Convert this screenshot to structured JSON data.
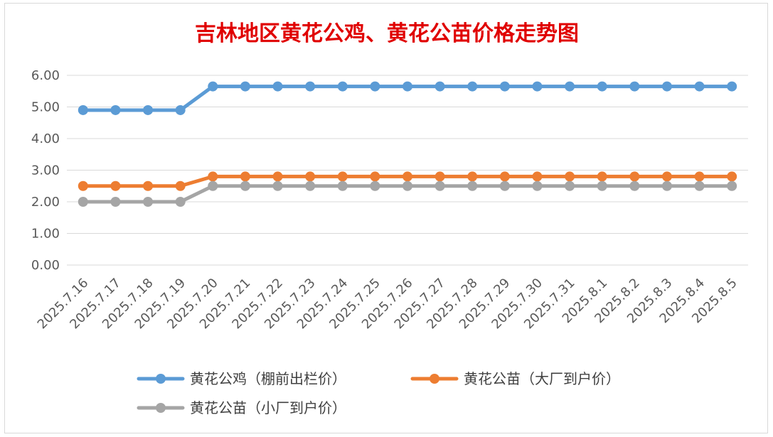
{
  "chart_data": {
    "type": "line",
    "title": "吉林地区黄花公鸡、黄花公苗价格走势图",
    "title_color": "#e00000",
    "xlabel": "",
    "ylabel": "",
    "ylim": [
      0,
      6
    ],
    "y_ticks": [
      "0.00",
      "1.00",
      "2.00",
      "3.00",
      "4.00",
      "5.00",
      "6.00"
    ],
    "grid": true,
    "legend_position": "bottom",
    "categories": [
      "2025.7.16",
      "2025.7.17",
      "2025.7.18",
      "2025.7.19",
      "2025.7.20",
      "2025.7.21",
      "2025.7.22",
      "2025.7.23",
      "2025.7.24",
      "2025.7.25",
      "2025.7.26",
      "2025.7.27",
      "2025.7.28",
      "2025.7.29",
      "2025.7.30",
      "2025.7.31",
      "2025.8.1",
      "2025.8.2",
      "2025.8.3",
      "2025.8.4",
      "2025.8.5"
    ],
    "series": [
      {
        "name": "黄花公鸡（棚前出栏价）",
        "color": "#5b9bd5",
        "values": [
          4.9,
          4.9,
          4.9,
          4.9,
          5.65,
          5.65,
          5.65,
          5.65,
          5.65,
          5.65,
          5.65,
          5.65,
          5.65,
          5.65,
          5.65,
          5.65,
          5.65,
          5.65,
          5.65,
          5.65,
          5.65
        ]
      },
      {
        "name": "黄花公苗（大厂到户价）",
        "color": "#ed7d31",
        "values": [
          2.5,
          2.5,
          2.5,
          2.5,
          2.8,
          2.8,
          2.8,
          2.8,
          2.8,
          2.8,
          2.8,
          2.8,
          2.8,
          2.8,
          2.8,
          2.8,
          2.8,
          2.8,
          2.8,
          2.8,
          2.8
        ]
      },
      {
        "name": "黄花公苗（小厂到户价）",
        "color": "#a5a5a5",
        "values": [
          2.0,
          2.0,
          2.0,
          2.0,
          2.5,
          2.5,
          2.5,
          2.5,
          2.5,
          2.5,
          2.5,
          2.5,
          2.5,
          2.5,
          2.5,
          2.5,
          2.5,
          2.5,
          2.5,
          2.5,
          2.5
        ]
      }
    ]
  }
}
